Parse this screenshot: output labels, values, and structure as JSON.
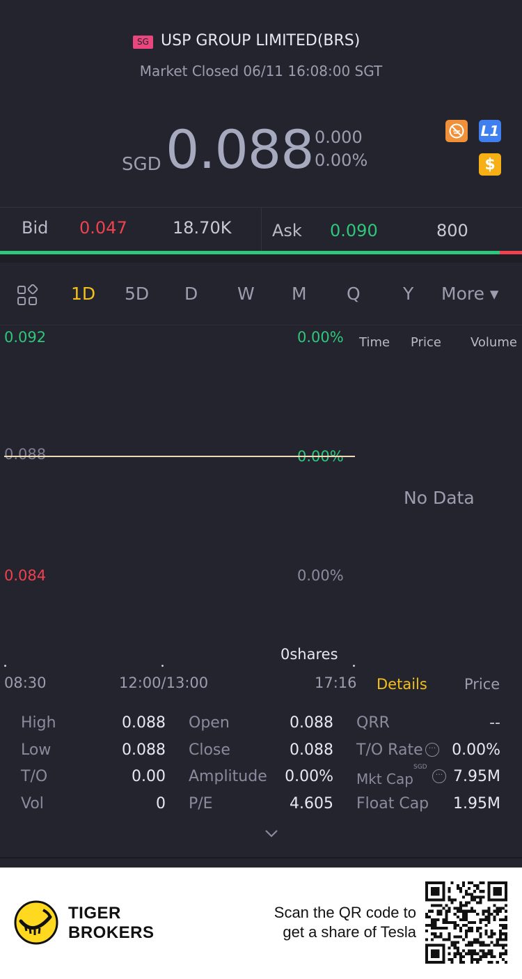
{
  "header": {
    "market_badge": "SG",
    "title": "USP GROUP LIMITED(BRS)",
    "status": "Market Closed 06/11 16:08:00 SGT"
  },
  "quote": {
    "currency": "SGD",
    "price": "0.088",
    "change": "0.000",
    "change_pct": "0.00%",
    "badges": [
      "no-short-sell-icon",
      "level-1-icon",
      "dollar-icon"
    ],
    "badge_l1_text": "L1",
    "badge_dollar_text": "$"
  },
  "bid_ask": {
    "bid_label": "Bid",
    "bid_price": "0.047",
    "bid_size": "18.70K",
    "ask_label": "Ask",
    "ask_price": "0.090",
    "ask_size": "800",
    "bid_ratio": 0.957
  },
  "periods": {
    "items": [
      "1D",
      "5D",
      "D",
      "W",
      "M",
      "Q",
      "Y"
    ],
    "more": "More ▾",
    "active": "1D"
  },
  "chart": {
    "y_high": "0.092",
    "y_mid": "0.088",
    "y_low": "0.084",
    "pct_high": "0.00%",
    "pct_mid": "0.00%",
    "pct_low": "0.00%",
    "volume_label": "0shares",
    "x_open": "08:30",
    "x_lunch": "12:00/13:00",
    "x_close": "17:16"
  },
  "chart_data": {
    "type": "line",
    "x": [
      "08:30",
      "17:16"
    ],
    "values": [
      0.088,
      0.088
    ],
    "ylim": [
      0.084,
      0.092
    ],
    "y2_labels": [
      "0.00%",
      "0.00%",
      "0.00%"
    ]
  },
  "time_sales": {
    "col_time": "Time",
    "col_price": "Price",
    "col_volume": "Volume",
    "empty": "No Data",
    "tab_details": "Details",
    "tab_price": "Price"
  },
  "stats": {
    "high_label": "High",
    "high": "0.088",
    "low_label": "Low",
    "low": "0.088",
    "to_label": "T/O",
    "to": "0.00",
    "vol_label": "Vol",
    "vol": "0",
    "open_label": "Open",
    "open": "0.088",
    "close_label": "Close",
    "close": "0.088",
    "amplitude_label": "Amplitude",
    "amplitude": "0.00%",
    "pe_label": "P/E",
    "pe": "4.605",
    "qrr_label": "QRR",
    "qrr": "--",
    "to_rate_label": "T/O Rate",
    "to_rate": "0.00%",
    "mkt_cap_label": "Mkt Cap",
    "mkt_cap_unit": "SGD",
    "mkt_cap": "7.95M",
    "float_cap_label": "Float Cap",
    "float_cap": "1.95M"
  },
  "footer": {
    "brand_line1": "TIGER",
    "brand_line2": "BROKERS",
    "promo_line1": "Scan the QR code to",
    "promo_line2": "get a share of Tesla"
  },
  "colors": {
    "background": "#23242d",
    "up": "#2fc77b",
    "down": "#f0414f",
    "accent": "#f3c019"
  }
}
